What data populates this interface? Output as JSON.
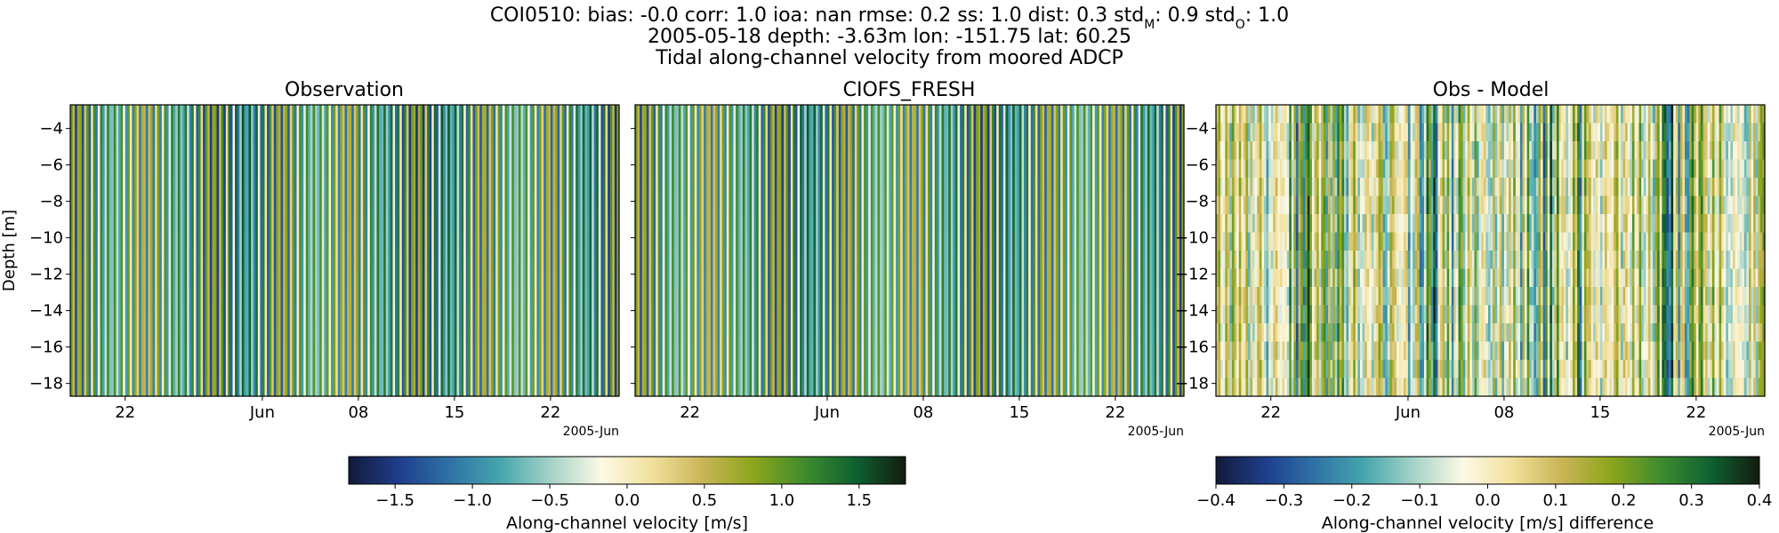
{
  "figure": {
    "title_prefix": "COI0510: bias: -0.0  corr: 1.0  ioa: nan  rmse: 0.2  ss: 1.0  dist: 0.3  std",
    "title_stdM_sub": "M",
    "title_mid": ": 0.9  std",
    "title_stdO_sub": "O",
    "title_suffix": ": 1.0",
    "title_line2": "2005-05-18 depth: -3.63m lon: -151.75 lat: 60.25",
    "title_line3": "Tidal along-channel velocity from moored ADCP"
  },
  "chart_data": [
    {
      "type": "heatmap",
      "title": "Observation",
      "xlabel": "",
      "ylabel": "Depth [m]",
      "xlim": [
        "2005-05-18",
        "2005-06-27"
      ],
      "ylim": [
        -18.7,
        -2.7
      ],
      "x_tick_labels": [
        "22",
        "Jun",
        "08",
        "15",
        "22"
      ],
      "x_tick_dates": [
        "2005-05-22",
        "2005-06-01",
        "2005-06-08",
        "2005-06-15",
        "2005-06-22"
      ],
      "x_offset_label": "2005-Jun",
      "yticks": [
        -4,
        -6,
        -8,
        -10,
        -12,
        -14,
        -16,
        -18
      ],
      "color_range": [
        -1.8,
        1.8
      ],
      "tidal_period_hours": 12.42,
      "amplitude": 1.6,
      "colormap": "delta"
    },
    {
      "type": "heatmap",
      "title": "CIOFS_FRESH",
      "xlabel": "",
      "ylabel": "",
      "xlim": [
        "2005-05-18",
        "2005-06-27"
      ],
      "ylim": [
        -18.7,
        -2.7
      ],
      "x_tick_labels": [
        "22",
        "Jun",
        "08",
        "15",
        "22"
      ],
      "x_tick_dates": [
        "2005-05-22",
        "2005-06-01",
        "2005-06-08",
        "2005-06-15",
        "2005-06-22"
      ],
      "x_offset_label": "2005-Jun",
      "color_range": [
        -1.8,
        1.8
      ],
      "tidal_period_hours": 12.42,
      "amplitude": 1.55,
      "colormap": "delta"
    },
    {
      "type": "heatmap",
      "title": "Obs - Model",
      "xlabel": "",
      "ylabel": "",
      "xlim": [
        "2005-05-18",
        "2005-06-27"
      ],
      "ylim": [
        -18.7,
        -2.7
      ],
      "x_tick_labels": [
        "22",
        "Jun",
        "08",
        "15",
        "22"
      ],
      "x_tick_dates": [
        "2005-05-22",
        "2005-06-01",
        "2005-06-08",
        "2005-06-15",
        "2005-06-22"
      ],
      "x_offset_label": "2005-Jun",
      "yticks": [
        -4,
        -6,
        -8,
        -10,
        -12,
        -14,
        -16,
        -18
      ],
      "color_range": [
        -0.4,
        0.4
      ],
      "colormap": "delta"
    }
  ],
  "colorbars": [
    {
      "label": "Along-channel velocity [m/s]",
      "range": [
        -1.8,
        1.8
      ],
      "ticks": [
        -1.5,
        -1.0,
        -0.5,
        0.0,
        0.5,
        1.0,
        1.5
      ],
      "tick_labels": [
        "−1.5",
        "−1.0",
        "−0.5",
        "0.0",
        "0.5",
        "1.0",
        "1.5"
      ]
    },
    {
      "label": "Along-channel velocity [m/s] difference",
      "range": [
        -0.4,
        0.4
      ],
      "ticks": [
        -0.4,
        -0.3,
        -0.2,
        -0.1,
        0.0,
        0.1,
        0.2,
        0.3,
        0.4
      ],
      "tick_labels": [
        "−0.4",
        "−0.3",
        "−0.2",
        "−0.1",
        "0.0",
        "0.1",
        "0.2",
        "0.3",
        "0.4"
      ]
    }
  ],
  "colormap_stops": [
    "#121a3a",
    "#1f3e8c",
    "#2f72a6",
    "#46a6ad",
    "#a5d3c7",
    "#fdf9e6",
    "#f1e09c",
    "#c9b556",
    "#8ca51c",
    "#3f8c2e",
    "#0e6232",
    "#141b0f"
  ]
}
